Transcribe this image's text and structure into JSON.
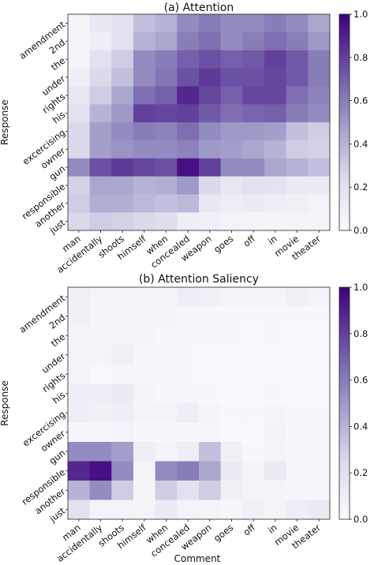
{
  "figure": {
    "xlabel": "Comment"
  },
  "chart_data": [
    {
      "type": "heatmap",
      "title": "(a) Attention",
      "ylabel": "Response",
      "xlabel": "",
      "x": [
        "man",
        "accidentally",
        "shoots",
        "himself",
        "when",
        "concealed",
        "weapon",
        "goes",
        "off",
        "in",
        "movie",
        "theater"
      ],
      "y": [
        "amendment",
        "2nd",
        "the",
        "under",
        "rights",
        "his",
        "excercising",
        "owner",
        "gun",
        "responsible",
        "another",
        "just"
      ],
      "colorbar": {
        "range": [
          0.0,
          1.0
        ],
        "ticks": [
          "0.0",
          "0.2",
          "0.4",
          "0.6",
          "0.8",
          "1.0"
        ],
        "colormap": "Purples",
        "low_color": "#fcfbfd",
        "high_color": "#3f007d"
      },
      "values": [
        [
          0.05,
          0.15,
          0.2,
          0.35,
          0.4,
          0.55,
          0.6,
          0.55,
          0.55,
          0.6,
          0.55,
          0.45
        ],
        [
          0.05,
          0.1,
          0.2,
          0.4,
          0.45,
          0.6,
          0.65,
          0.55,
          0.6,
          0.65,
          0.6,
          0.5
        ],
        [
          0.05,
          0.2,
          0.3,
          0.55,
          0.6,
          0.7,
          0.75,
          0.7,
          0.72,
          0.8,
          0.72,
          0.6
        ],
        [
          0.1,
          0.25,
          0.35,
          0.55,
          0.62,
          0.75,
          0.82,
          0.75,
          0.75,
          0.78,
          0.72,
          0.6
        ],
        [
          0.15,
          0.3,
          0.45,
          0.65,
          0.7,
          0.88,
          0.78,
          0.7,
          0.78,
          0.78,
          0.65,
          0.58
        ],
        [
          0.2,
          0.4,
          0.5,
          0.8,
          0.78,
          0.8,
          0.72,
          0.65,
          0.68,
          0.7,
          0.6,
          0.55
        ],
        [
          0.25,
          0.48,
          0.55,
          0.6,
          0.58,
          0.65,
          0.55,
          0.5,
          0.5,
          0.48,
          0.35,
          0.3
        ],
        [
          0.25,
          0.48,
          0.52,
          0.55,
          0.55,
          0.58,
          0.5,
          0.48,
          0.45,
          0.4,
          0.3,
          0.28
        ],
        [
          0.55,
          0.75,
          0.82,
          0.78,
          0.75,
          0.95,
          0.8,
          0.55,
          0.55,
          0.45,
          0.4,
          0.35
        ],
        [
          0.28,
          0.45,
          0.45,
          0.4,
          0.42,
          0.5,
          0.25,
          0.15,
          0.2,
          0.18,
          0.12,
          0.12
        ],
        [
          0.3,
          0.42,
          0.42,
          0.38,
          0.35,
          0.38,
          0.15,
          0.1,
          0.12,
          0.1,
          0.08,
          0.06
        ],
        [
          0.25,
          0.3,
          0.28,
          0.25,
          0.22,
          0.1,
          0.08,
          0.06,
          0.06,
          0.05,
          0.05,
          0.05
        ]
      ]
    },
    {
      "type": "heatmap",
      "title": "(b) Attention Saliency",
      "ylabel": "Response",
      "xlabel": "Comment",
      "x": [
        "man",
        "accidentally",
        "shoots",
        "himself",
        "when",
        "concealed",
        "weapon",
        "goes",
        "off",
        "in",
        "movie",
        "theater"
      ],
      "y": [
        "amendment",
        "2nd",
        "the",
        "under",
        "rights",
        "his",
        "excercising",
        "owner",
        "gun",
        "responsible",
        "another",
        "just"
      ],
      "colorbar": {
        "range": [
          0.0,
          1.0
        ],
        "ticks": [
          "0.0",
          "0.2",
          "0.4",
          "0.6",
          "0.8",
          "1.0"
        ],
        "colormap": "Purples",
        "low_color": "#fcfbfd",
        "high_color": "#3f007d"
      },
      "values": [
        [
          0.08,
          0.05,
          0.05,
          0.05,
          0.05,
          0.1,
          0.08,
          0.05,
          0.05,
          0.05,
          0.08,
          0.06
        ],
        [
          0.08,
          0.05,
          0.05,
          0.05,
          0.05,
          0.04,
          0.03,
          0.03,
          0.03,
          0.03,
          0.03,
          0.03
        ],
        [
          0.06,
          0.05,
          0.06,
          0.05,
          0.04,
          0.03,
          0.03,
          0.03,
          0.02,
          0.03,
          0.02,
          0.02
        ],
        [
          0.06,
          0.06,
          0.08,
          0.04,
          0.03,
          0.03,
          0.02,
          0.02,
          0.02,
          0.02,
          0.02,
          0.02
        ],
        [
          0.06,
          0.02,
          0.04,
          0.03,
          0.03,
          0.03,
          0.02,
          0.02,
          0.02,
          0.02,
          0.02,
          0.02
        ],
        [
          0.1,
          0.1,
          0.12,
          0.05,
          0.04,
          0.04,
          0.03,
          0.02,
          0.02,
          0.03,
          0.02,
          0.02
        ],
        [
          0.1,
          0.08,
          0.1,
          0.06,
          0.06,
          0.1,
          0.05,
          0.03,
          0.03,
          0.05,
          0.03,
          0.03
        ],
        [
          0.04,
          0.04,
          0.06,
          0.03,
          0.03,
          0.03,
          0.04,
          0.02,
          0.02,
          0.07,
          0.04,
          0.03
        ],
        [
          0.55,
          0.55,
          0.48,
          0.1,
          0.05,
          0.1,
          0.35,
          0.08,
          0.03,
          0.05,
          0.03,
          0.03
        ],
        [
          0.88,
          0.95,
          0.55,
          0.05,
          0.55,
          0.6,
          0.45,
          0.12,
          0.05,
          0.12,
          0.03,
          0.03
        ],
        [
          0.4,
          0.55,
          0.3,
          0.05,
          0.3,
          0.2,
          0.3,
          0.08,
          0.05,
          0.05,
          0.04,
          0.04
        ],
        [
          0.2,
          0.06,
          0.06,
          0.05,
          0.12,
          0.06,
          0.05,
          0.04,
          0.08,
          0.05,
          0.1,
          0.12
        ]
      ]
    }
  ]
}
